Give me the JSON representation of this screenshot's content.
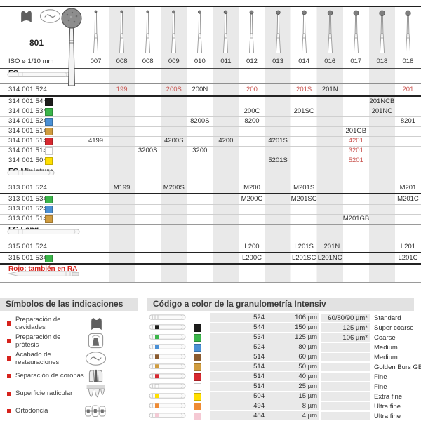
{
  "palette": {
    "red_text": "#c9534e",
    "accent_red": "#d6221c",
    "stripe": "#e9e9e9",
    "black_sq": "#1d1d1b",
    "green_sq": "#3bb54a",
    "blue_sq": "#4a90d5",
    "gold_sq": "#d09c3e",
    "red_sq": "#d7282f",
    "white_sq": "#ffffff",
    "yellow_sq": "#ffdf00",
    "brown_sq": "#8a5a2e",
    "orange_sq": "#ef8b33",
    "pink_sq": "#f5c9d4"
  },
  "header": {
    "figure": "801",
    "indication_icons": [
      "cavity-prep-icon",
      "restoration-finishing-icon"
    ]
  },
  "table": {
    "iso_label": "ISO ø 1/10 mm",
    "iso_sizes": [
      "007",
      "008",
      "008",
      "009",
      "010",
      "011",
      "012",
      "013",
      "014",
      "016",
      "017",
      "018",
      "018"
    ],
    "sections": [
      {
        "label": "FG",
        "shank": "fg",
        "rows": [
          {
            "code": "314 001 524",
            "square": null,
            "values": [
              {
                "col": 1,
                "text": "199",
                "red": true
              },
              {
                "col": 3,
                "text": "200S",
                "red": true
              },
              {
                "col": 4,
                "text": "200N"
              },
              {
                "col": 6,
                "text": "200",
                "red": true
              },
              {
                "col": 8,
                "text": "201S",
                "red": true
              },
              {
                "col": 9,
                "text": "201N"
              },
              {
                "col": 12,
                "text": "201",
                "red": true
              }
            ]
          },
          {
            "code": "314 001 544",
            "square": "black",
            "values": [
              {
                "col": 11,
                "text": "201NCB"
              }
            ]
          },
          {
            "code": "314 001 534",
            "square": "green",
            "values": [
              {
                "col": 6,
                "text": "200C"
              },
              {
                "col": 8,
                "text": "201SC"
              },
              {
                "col": 11,
                "text": "201NC"
              }
            ]
          },
          {
            "code": "314 001 524",
            "square": "blue",
            "values": [
              {
                "col": 4,
                "text": "8200S"
              },
              {
                "col": 6,
                "text": "8200"
              },
              {
                "col": 12,
                "text": "8201"
              }
            ]
          },
          {
            "code": "314 001 514",
            "square": "gold",
            "values": [
              {
                "col": 10,
                "text": "201GB"
              }
            ]
          },
          {
            "code": "314 001 514",
            "square": "red",
            "values": [
              {
                "col": 0,
                "text": "4199"
              },
              {
                "col": 3,
                "text": "4200S"
              },
              {
                "col": 5,
                "text": "4200"
              },
              {
                "col": 7,
                "text": "4201S"
              },
              {
                "col": 10,
                "text": "4201",
                "red": true
              }
            ]
          },
          {
            "code": "314 001 514",
            "square": "white",
            "values": [
              {
                "col": 2,
                "text": "3200S"
              },
              {
                "col": 4,
                "text": "3200"
              },
              {
                "col": 10,
                "text": "3201",
                "red": true
              }
            ]
          },
          {
            "code": "314 001 504",
            "square": "yellow",
            "values": [
              {
                "col": 7,
                "text": "5201S"
              },
              {
                "col": 10,
                "text": "5201",
                "red": true
              }
            ]
          }
        ]
      },
      {
        "label": "FG Miniature",
        "shank": "miniature",
        "rows": [
          {
            "code": "313 001 524",
            "square": null,
            "values": [
              {
                "col": 1,
                "text": "M199"
              },
              {
                "col": 3,
                "text": "M200S"
              },
              {
                "col": 6,
                "text": "M200"
              },
              {
                "col": 8,
                "text": "M201S"
              },
              {
                "col": 12,
                "text": "M201"
              }
            ]
          },
          {
            "code": "313 001 534",
            "square": "green",
            "values": [
              {
                "col": 6,
                "text": "M200C"
              },
              {
                "col": 8,
                "text": "M201SC"
              },
              {
                "col": 12,
                "text": "M201C"
              }
            ]
          },
          {
            "code": "313 001 524",
            "square": "blue",
            "values": []
          },
          {
            "code": "313 001 514",
            "square": "gold",
            "values": [
              {
                "col": 10,
                "text": "M201GB"
              }
            ]
          }
        ]
      },
      {
        "label": "FG Long",
        "shank": "long",
        "rows": [
          {
            "code": "315 001 524",
            "square": null,
            "values": [
              {
                "col": 6,
                "text": "L200"
              },
              {
                "col": 8,
                "text": "L201S"
              },
              {
                "col": 9,
                "text": "L201N"
              },
              {
                "col": 12,
                "text": "L201"
              }
            ]
          },
          {
            "code": "315 001 534",
            "square": "green",
            "values": [
              {
                "col": 6,
                "text": "L200C"
              },
              {
                "col": 8,
                "text": "L201SC"
              },
              {
                "col": 9,
                "text": "L201NC"
              },
              {
                "col": 12,
                "text": "L201C"
              }
            ]
          }
        ]
      }
    ],
    "footnote": {
      "text": "Rojo: también en RA",
      "shank": "ra"
    }
  },
  "indications": {
    "title": "Símbolos de las indicaciones",
    "items": [
      {
        "label": "Preparación de cavidades",
        "icon": "cavity-prep-icon"
      },
      {
        "label": "Preparación de prótesis",
        "icon": "prosthesis-prep-icon"
      },
      {
        "label": "Acabado de restauraciones",
        "icon": "restoration-finishing-icon"
      },
      {
        "label": "Separación de coronas",
        "icon": "crown-separation-icon"
      },
      {
        "label": "Superficie radicular",
        "icon": "root-surface-icon"
      },
      {
        "label": "Ortodoncia",
        "icon": "orthodontics-icon"
      }
    ]
  },
  "grit_code": {
    "title": "Código a color de la granulometría Intensiv",
    "rows": [
      {
        "color": null,
        "code": "524",
        "grit": "106 µm",
        "alt": "60/80/90 µm*",
        "label": "Standard"
      },
      {
        "color": "black",
        "code": "544",
        "grit": "150 µm",
        "alt": "125 µm*",
        "label": "Super coarse"
      },
      {
        "color": "green",
        "code": "534",
        "grit": "125 µm",
        "alt": "106 µm*",
        "label": "Coarse"
      },
      {
        "color": "blue",
        "code": "524",
        "grit": "80 µm",
        "alt": "",
        "label": "Medium"
      },
      {
        "color": "brown",
        "code": "514",
        "grit": "60 µm",
        "alt": "",
        "label": "Medium"
      },
      {
        "color": "gold",
        "code": "514",
        "grit": "50 µm",
        "alt": "",
        "label": "Golden Burs GB"
      },
      {
        "color": "red",
        "code": "514",
        "grit": "40 µm",
        "alt": "",
        "label": "Fine"
      },
      {
        "color": "white",
        "code": "514",
        "grit": "25 µm",
        "alt": "",
        "label": "Fine"
      },
      {
        "color": "yellow",
        "code": "504",
        "grit": "15 µm",
        "alt": "",
        "label": "Extra fine"
      },
      {
        "color": "orange",
        "code": "494",
        "grit": "8 µm",
        "alt": "",
        "label": "Ultra fine"
      },
      {
        "color": "pink",
        "code": "484",
        "grit": "4 µm",
        "alt": "",
        "label": "Ultra fine"
      }
    ]
  }
}
